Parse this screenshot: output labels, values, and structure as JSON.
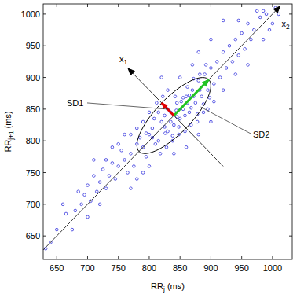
{
  "chart_data": {
    "type": "scatter",
    "xlabel": "RRj (ms)",
    "ylabel": "RRj+1 (ms)",
    "xlim": [
      628,
      1032
    ],
    "ylim": [
      613,
      1016
    ],
    "xticks": [
      650,
      700,
      750,
      800,
      850,
      900,
      950,
      1000
    ],
    "yticks": [
      650,
      700,
      750,
      800,
      850,
      900,
      950,
      1000
    ],
    "color": "#3333dd",
    "marker": "circle",
    "x": [
      800,
      810,
      820,
      830,
      835,
      840,
      845,
      850,
      855,
      860,
      865,
      870,
      875,
      880,
      885,
      890,
      895,
      900,
      905,
      910,
      790,
      785,
      795,
      805,
      815,
      825,
      830,
      838,
      842,
      848,
      852,
      858,
      862,
      868,
      872,
      878,
      882,
      888,
      892,
      898,
      770,
      775,
      780,
      760,
      765,
      755,
      750,
      745,
      740,
      735,
      730,
      725,
      720,
      715,
      710,
      705,
      700,
      695,
      690,
      680,
      915,
      920,
      925,
      930,
      935,
      940,
      945,
      950,
      955,
      960,
      965,
      970,
      980,
      990,
      1000,
      1005,
      985,
      975,
      945,
      995,
      812,
      822,
      800,
      790,
      780,
      770,
      818,
      828,
      838,
      848,
      858,
      868,
      878,
      888,
      895,
      905,
      808,
      826,
      844,
      862,
      830,
      850,
      870,
      880,
      840,
      860,
      880,
      900,
      760,
      750,
      740,
      730,
      800,
      790,
      780,
      770,
      820,
      900,
      920,
      940,
      650,
      640,
      632,
      665,
      675,
      685,
      660,
      700,
      710,
      720,
      920,
      960,
      1010,
      985,
      815,
      835,
      845,
      825,
      855,
      865,
      805,
      795,
      872,
      882
    ],
    "values": [
      810,
      795,
      830,
      815,
      845,
      825,
      860,
      835,
      850,
      870,
      845,
      880,
      860,
      895,
      870,
      905,
      880,
      915,
      890,
      925,
      790,
      805,
      775,
      820,
      800,
      840,
      850,
      808,
      870,
      822,
      862,
      840,
      885,
      852,
      898,
      842,
      905,
      858,
      920,
      868,
      780,
      760,
      795,
      770,
      750,
      785,
      760,
      740,
      765,
      745,
      725,
      755,
      735,
      720,
      745,
      705,
      730,
      715,
      700,
      690,
      900,
      940,
      915,
      950,
      925,
      960,
      935,
      970,
      945,
      985,
      960,
      975,
      995,
      1000,
      985,
      1010,
      960,
      1005,
      990,
      975,
      860,
      870,
      845,
      830,
      820,
      810,
      780,
      790,
      800,
      810,
      815,
      825,
      830,
      845,
      850,
      862,
      835,
      812,
      848,
      860,
      880,
      900,
      920,
      940,
      780,
      790,
      810,
      830,
      810,
      795,
      790,
      770,
      760,
      750,
      740,
      725,
      900,
      960,
      880,
      905,
      660,
      640,
      630,
      685,
      660,
      720,
      700,
      680,
      770,
      700,
      990,
      920,
      1000,
      1005,
      845,
      830,
      838,
      822,
      868,
      872,
      805,
      812,
      870,
      880
    ],
    "ellipse": {
      "center": [
        840,
        840
      ],
      "sd1": 28,
      "sd2": 80
    },
    "axes_labels": {
      "x1": "x1",
      "x2": "x2"
    },
    "annotations": {
      "sd1": "SD1",
      "sd2": "SD2"
    }
  }
}
